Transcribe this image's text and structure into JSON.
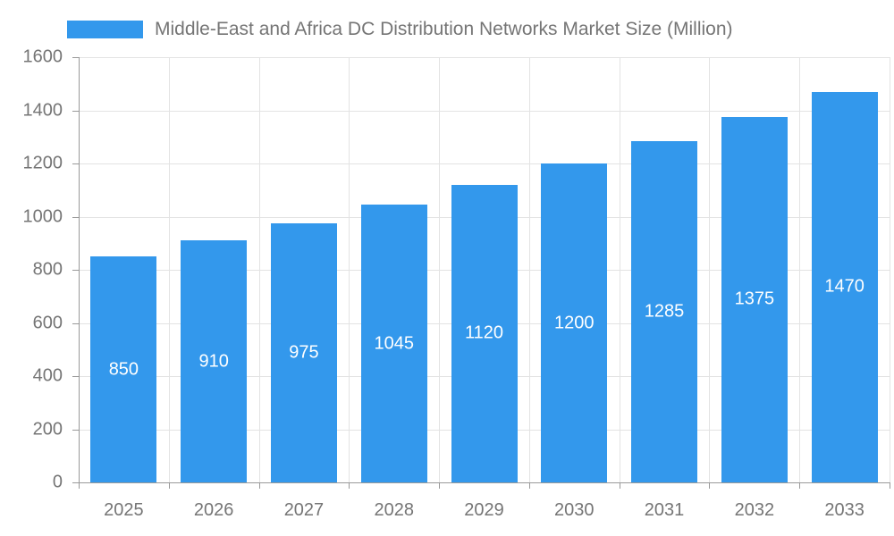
{
  "chart_data": {
    "type": "bar",
    "title": "Middle-East and Africa DC Distribution Networks Market Size (Million)",
    "categories": [
      "2025",
      "2026",
      "2027",
      "2028",
      "2029",
      "2030",
      "2031",
      "2032",
      "2033"
    ],
    "values": [
      850,
      910,
      975,
      1045,
      1120,
      1200,
      1285,
      1375,
      1470
    ],
    "xlabel": "",
    "ylabel": "",
    "ylim": [
      0,
      1600
    ],
    "ytick_step": 200,
    "grid": true,
    "legend_position": "top-left",
    "value_labels": "inside-center",
    "colors": {
      "bar": "#3398ec",
      "axis_text": "#757575",
      "grid_line": "#e3e3e3",
      "axis_line": "#999999",
      "value_label_text": "#ffffff",
      "background": "#ffffff"
    }
  }
}
